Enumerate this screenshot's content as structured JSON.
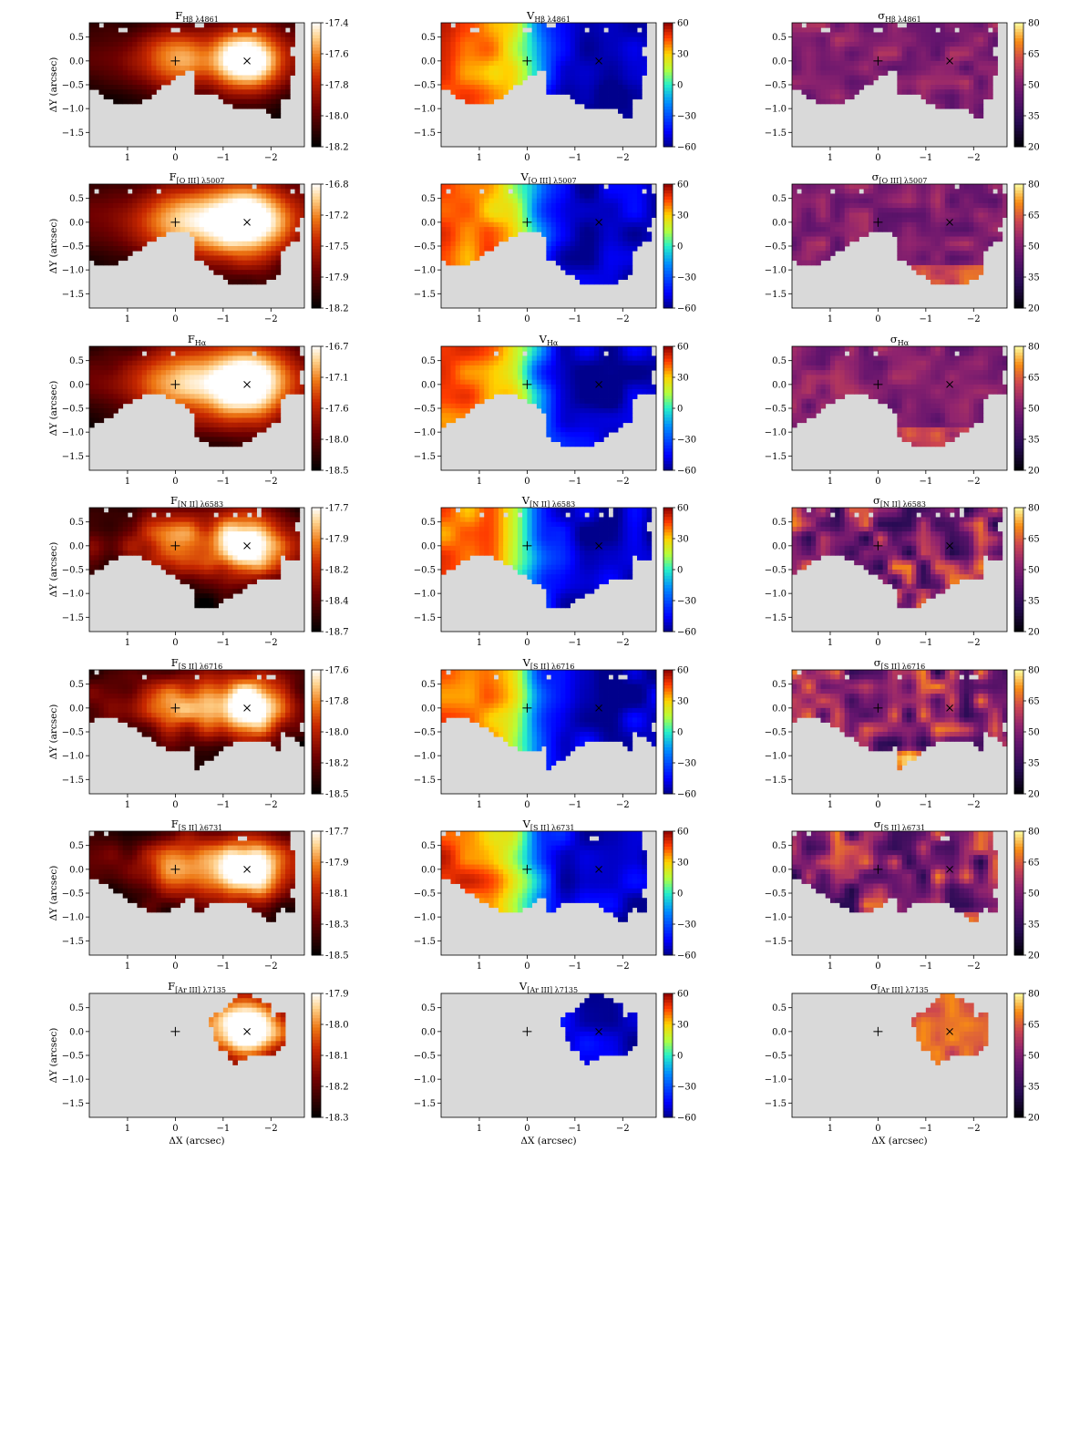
{
  "chart_data": {
    "type": "heatmap",
    "figure": "grid of emission-line flux, velocity and velocity-dispersion maps",
    "x_axis": {
      "label": "ΔX (arcsec)",
      "range": [
        1.8,
        -2.7
      ],
      "ticks": [
        1,
        0,
        -1,
        -2
      ],
      "tick_labels": [
        "1",
        "0",
        "−1",
        "−2"
      ]
    },
    "y_axis": {
      "label": "ΔY (arcsec)",
      "range": [
        -1.8,
        0.8
      ],
      "ticks": [
        0.5,
        0.0,
        -0.5,
        -1.0,
        -1.5
      ],
      "tick_labels": [
        "0.5",
        "0.0",
        "−0.5",
        "−1.0",
        "−1.5"
      ]
    },
    "markers": [
      {
        "symbol": "plus",
        "x": 0.0,
        "y": 0.0
      },
      {
        "symbol": "cross",
        "x": -1.5,
        "y": 0.0
      }
    ],
    "masked_color": "#d9d9d9",
    "columns": [
      {
        "quantity": "F",
        "colormap": "gist_heat"
      },
      {
        "quantity": "V",
        "colormap": "jet",
        "colorbar_ticks": [
          "60",
          "30",
          "0",
          "−30",
          "−60"
        ],
        "range": [
          -60,
          60
        ]
      },
      {
        "quantity": "σ",
        "colormap": "inferno",
        "colorbar_ticks": [
          "80",
          "65",
          "50",
          "35",
          "20"
        ],
        "range": [
          20,
          80
        ]
      }
    ],
    "rows": [
      {
        "line": "Hβ λ4861",
        "flux_ticks": [
          "-17.4",
          "-17.6",
          "-17.8",
          "-18.0",
          "-18.2"
        ]
      },
      {
        "line": "[O III] λ5007",
        "flux_ticks": [
          "-16.8",
          "-17.2",
          "-17.5",
          "-17.9",
          "-18.2"
        ]
      },
      {
        "line": "Hα",
        "flux_ticks": [
          "-16.7",
          "-17.1",
          "-17.6",
          "-18.0",
          "-18.5"
        ]
      },
      {
        "line": "[N II] λ6583",
        "flux_ticks": [
          "-17.7",
          "-17.9",
          "-18.2",
          "-18.4",
          "-18.7"
        ]
      },
      {
        "line": "[S II] λ6716",
        "flux_ticks": [
          "-17.6",
          "-17.8",
          "-18.0",
          "-18.2",
          "-18.5"
        ]
      },
      {
        "line": "[S II] λ6731",
        "flux_ticks": [
          "-17.7",
          "-17.9",
          "-18.1",
          "-18.3",
          "-18.5"
        ]
      },
      {
        "line": "[Ar III] λ7135",
        "flux_ticks": [
          "-17.9",
          "-18.0",
          "-18.1",
          "-18.2",
          "-18.3"
        ]
      }
    ],
    "map_model": {
      "flux_peaks_arcsec": [
        {
          "x": -1.5,
          "y": 0.0,
          "relative_strength": 1.0
        },
        {
          "x": 0.0,
          "y": 0.0,
          "relative_strength": 0.55
        }
      ],
      "velocity_gradient": {
        "east_kms": 45,
        "west_kms": -55,
        "zero_crossing_x": 0.0
      },
      "dispersion_typical_kms": 50,
      "coverage_extent": {
        "Hβ λ4861": {
          "x": [
            1.8,
            -2.5
          ],
          "y": [
            -1.2,
            0.8
          ]
        },
        "[O III] λ5007": {
          "x": [
            1.8,
            -2.7
          ],
          "y": [
            -1.8,
            0.8
          ]
        },
        "Hα": {
          "x": [
            1.8,
            -2.7
          ],
          "y": [
            -1.8,
            0.8
          ]
        },
        "[N II] λ6583": {
          "x": [
            1.8,
            -2.6
          ],
          "y": [
            -1.3,
            0.8
          ]
        },
        "[S II] λ6716": {
          "x": [
            1.8,
            -2.7
          ],
          "y": [
            -1.7,
            0.8
          ]
        },
        "[S II] λ6731": {
          "x": [
            1.8,
            -2.5
          ],
          "y": [
            -1.1,
            0.8
          ]
        },
        "[Ar III] λ7135": {
          "x": [
            -0.7,
            -2.2
          ],
          "y": [
            -0.6,
            0.7
          ]
        }
      }
    }
  }
}
